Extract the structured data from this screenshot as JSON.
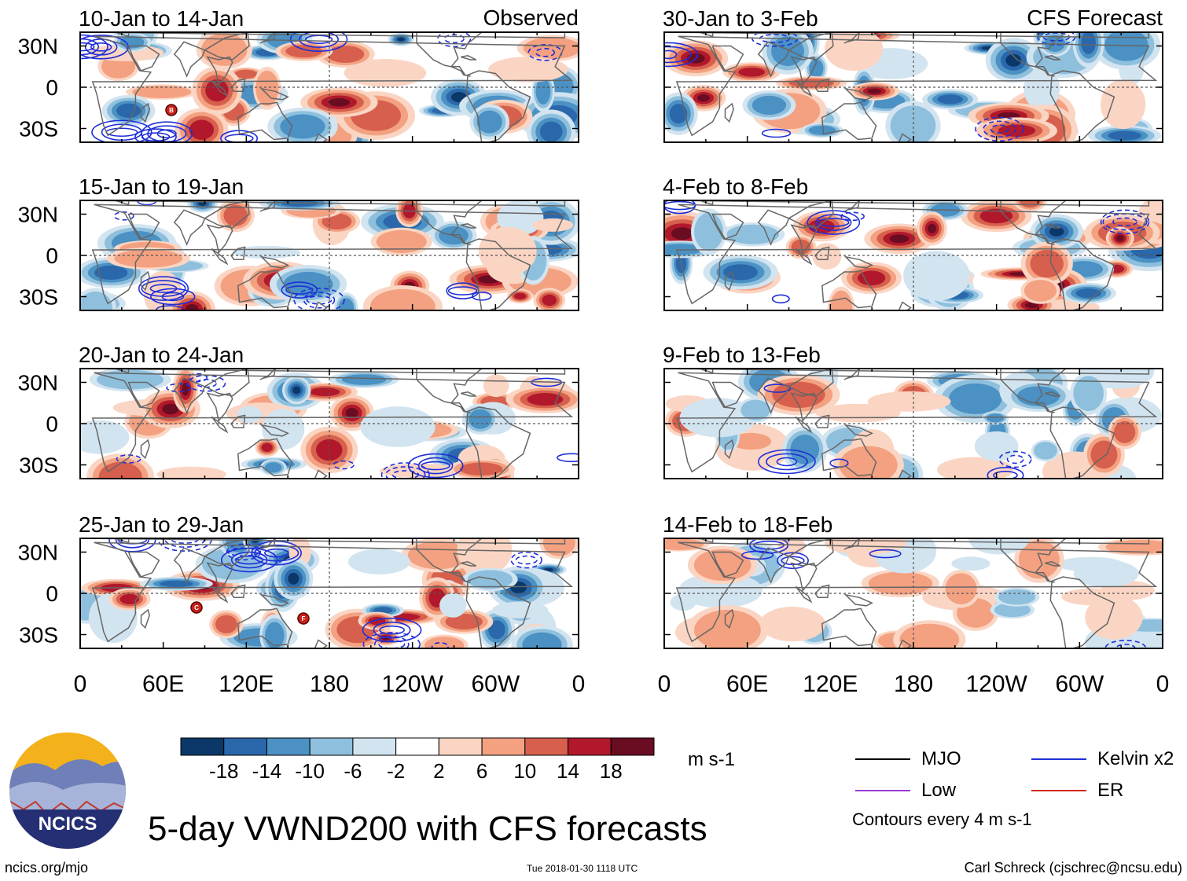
{
  "chart_data": {
    "type": "heatmap",
    "title": "5-day VWND200 with CFS forecasts",
    "units": "m s-1",
    "column_headers": {
      "left": "Observed",
      "right": "CFS Forecast"
    },
    "y_tick_labels": [
      "30N",
      "0",
      "30S"
    ],
    "x_tick_labels": [
      "0",
      "60E",
      "120E",
      "180",
      "120W",
      "60W",
      "0"
    ],
    "x_range_deg_east": [
      0,
      360
    ],
    "y_range_deg_lat": [
      -40,
      40
    ],
    "panels": [
      {
        "period": "10-Jan to 14-Jan",
        "source": "observed"
      },
      {
        "period": "15-Jan to 19-Jan",
        "source": "observed"
      },
      {
        "period": "20-Jan to 24-Jan",
        "source": "observed"
      },
      {
        "period": "25-Jan to 29-Jan",
        "source": "observed"
      },
      {
        "period": "30-Jan to 3-Feb",
        "source": "forecast"
      },
      {
        "period": "4-Feb to 8-Feb",
        "source": "forecast"
      },
      {
        "period": "9-Feb to 13-Feb",
        "source": "forecast"
      },
      {
        "period": "14-Feb to 18-Feb",
        "source": "forecast"
      }
    ],
    "colorbar": {
      "tick_labels": [
        "-18",
        "-14",
        "-10",
        "-6",
        "-2",
        "2",
        "6",
        "10",
        "14",
        "18"
      ],
      "colors": [
        "#0b3868",
        "#2a68ab",
        "#4b91c4",
        "#8ec0dd",
        "#d2e4f0",
        "#ffffff",
        "#fbd5c3",
        "#f3a181",
        "#d6604d",
        "#b2182b",
        "#6a0d22"
      ]
    },
    "contour_legend": [
      {
        "label": "MJO",
        "color": "#000000"
      },
      {
        "label": "Kelvin x2",
        "color": "#1f2fd8"
      },
      {
        "label": "Low",
        "color": "#9a3ad6"
      },
      {
        "label": "ER",
        "color": "#d42a1c"
      }
    ],
    "contour_note": "Contours every 4 m s-1",
    "storm_markers": [
      {
        "panel": 0,
        "label": "B"
      },
      {
        "panel": 3,
        "label": "C"
      },
      {
        "panel": 3,
        "label": "F"
      }
    ]
  },
  "logo": {
    "text": "NCICS"
  },
  "footer": {
    "left": "ncics.org/mjo",
    "middle": "Tue 2018-01-30 1118 UTC",
    "right": "Carl Schreck (cjschrec@ncsu.edu)"
  }
}
